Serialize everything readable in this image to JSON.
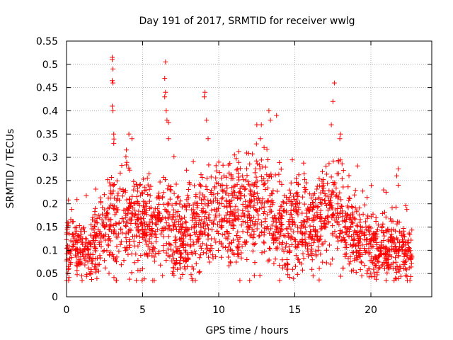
{
  "chart_data": {
    "type": "scatter",
    "title": "Day 191 of 2017, SRMTID for receiver wwlg",
    "xlabel": "GPS time / hours",
    "ylabel": "SRMTID / TECUs",
    "xlim": [
      0,
      24
    ],
    "ylim": [
      0,
      0.55
    ],
    "xticks": [
      0,
      5,
      10,
      15,
      20
    ],
    "yticks": [
      0,
      0.05,
      0.1,
      0.15,
      0.2,
      0.25,
      0.3,
      0.35,
      0.4,
      0.45,
      0.5,
      0.55
    ],
    "grid": true,
    "marker": "+",
    "point_color": "#ff0000",
    "n_points_depicted": 2200,
    "series": [
      {
        "name": "SRMTID",
        "generation": "dense ~2200-point cloud approximated by seeded noise around the trend below; individual points are not legible in the source image",
        "trend": {
          "x": [
            0,
            0.5,
            1,
            1.5,
            2,
            2.5,
            3,
            3.5,
            4,
            4.5,
            5,
            5.5,
            6,
            6.5,
            7,
            7.5,
            8,
            8.5,
            9,
            9.5,
            10,
            10.5,
            11,
            11.5,
            12,
            12.5,
            13,
            13.5,
            14,
            14.5,
            15,
            15.5,
            16,
            16.5,
            17,
            17.5,
            18,
            18.5,
            19,
            19.5,
            20,
            20.5,
            21,
            21.5,
            22,
            22.5,
            22.7
          ],
          "y": [
            0.1,
            0.11,
            0.1,
            0.09,
            0.12,
            0.14,
            0.16,
            0.17,
            0.18,
            0.17,
            0.15,
            0.14,
            0.15,
            0.16,
            0.14,
            0.13,
            0.14,
            0.15,
            0.16,
            0.17,
            0.18,
            0.17,
            0.16,
            0.17,
            0.19,
            0.18,
            0.18,
            0.17,
            0.15,
            0.14,
            0.16,
            0.16,
            0.15,
            0.16,
            0.18,
            0.18,
            0.17,
            0.15,
            0.13,
            0.12,
            0.11,
            0.1,
            0.1,
            0.11,
            0.1,
            0.09,
            0.09
          ]
        },
        "notable_points": [
          {
            "x": 3.0,
            "y": 0.515
          },
          {
            "x": 3.0,
            "y": 0.51
          },
          {
            "x": 3.05,
            "y": 0.49
          },
          {
            "x": 3.0,
            "y": 0.465
          },
          {
            "x": 3.05,
            "y": 0.46
          },
          {
            "x": 3.0,
            "y": 0.41
          },
          {
            "x": 3.05,
            "y": 0.4
          },
          {
            "x": 3.1,
            "y": 0.35
          },
          {
            "x": 3.1,
            "y": 0.33
          },
          {
            "x": 6.5,
            "y": 0.505
          },
          {
            "x": 6.45,
            "y": 0.47
          },
          {
            "x": 6.5,
            "y": 0.44
          },
          {
            "x": 6.45,
            "y": 0.43
          },
          {
            "x": 6.55,
            "y": 0.4
          },
          {
            "x": 6.6,
            "y": 0.38
          },
          {
            "x": 6.7,
            "y": 0.375
          },
          {
            "x": 6.7,
            "y": 0.34
          },
          {
            "x": 9.1,
            "y": 0.44
          },
          {
            "x": 9.05,
            "y": 0.43
          },
          {
            "x": 9.2,
            "y": 0.38
          },
          {
            "x": 9.3,
            "y": 0.34
          },
          {
            "x": 13.3,
            "y": 0.4
          },
          {
            "x": 13.4,
            "y": 0.38
          },
          {
            "x": 13.8,
            "y": 0.39
          },
          {
            "x": 12.5,
            "y": 0.37
          },
          {
            "x": 12.8,
            "y": 0.37
          },
          {
            "x": 17.6,
            "y": 0.46
          },
          {
            "x": 17.5,
            "y": 0.42
          },
          {
            "x": 17.4,
            "y": 0.37
          },
          {
            "x": 18.0,
            "y": 0.35
          },
          {
            "x": 4.1,
            "y": 0.35
          },
          {
            "x": 4.3,
            "y": 0.34
          },
          {
            "x": 21.8,
            "y": 0.275
          },
          {
            "x": 21.7,
            "y": 0.26
          },
          {
            "x": 21.8,
            "y": 0.24
          },
          {
            "x": 8.3,
            "y": 0.035
          },
          {
            "x": 7.5,
            "y": 0.04
          },
          {
            "x": 14.0,
            "y": 0.035
          },
          {
            "x": 19.4,
            "y": 0.045
          },
          {
            "x": 21.6,
            "y": 0.04
          },
          {
            "x": 1.0,
            "y": 0.045
          },
          {
            "x": 5.0,
            "y": 0.06
          },
          {
            "x": 20.5,
            "y": 0.06
          },
          {
            "x": 16.2,
            "y": 0.045
          }
        ]
      }
    ]
  }
}
